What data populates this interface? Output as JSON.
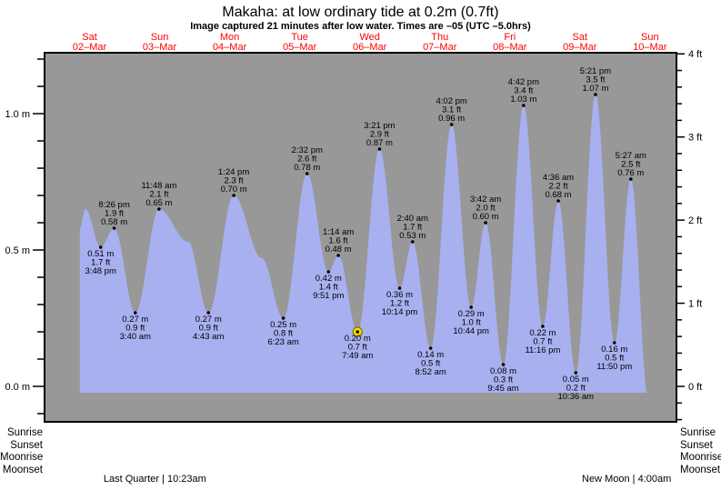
{
  "title": "Makaha: at low  ordinary tide at 0.2m (0.7ft)",
  "subtitle": "Image captured 21 minutes after low water. Times are –05 (UTC –5.0hrs)",
  "colors": {
    "plot_background": "#989898",
    "tide_fill": "#a8b0f0",
    "day_label": "#ff0000",
    "text": "#000000",
    "marker_fill": "#ffdf00",
    "marker_ring": "#7a7a00"
  },
  "chart_data": {
    "type": "area",
    "title": "Makaha: at low  ordinary tide at 0.2m (0.7ft)",
    "days": [
      {
        "name": "Sat",
        "date": "02–Mar"
      },
      {
        "name": "Sun",
        "date": "03–Mar"
      },
      {
        "name": "Mon",
        "date": "04–Mar"
      },
      {
        "name": "Tue",
        "date": "05–Mar"
      },
      {
        "name": "Wed",
        "date": "06–Mar"
      },
      {
        "name": "Thu",
        "date": "07–Mar"
      },
      {
        "name": "Fri",
        "date": "08–Mar"
      },
      {
        "name": "Sat",
        "date": "09–Mar"
      },
      {
        "name": "Sun",
        "date": "10–Mar"
      }
    ],
    "y_left": {
      "unit": "m",
      "ticks": [
        {
          "value": 1.0,
          "label": "1.0 m"
        },
        {
          "value": 0.5,
          "label": "0.5 m"
        },
        {
          "value": 0.0,
          "label": "0.0 m"
        }
      ]
    },
    "y_right": {
      "unit": "ft",
      "ticks": [
        {
          "value": 4,
          "label": "4 ft"
        },
        {
          "value": 3,
          "label": "3 ft"
        },
        {
          "value": 2,
          "label": "2 ft"
        },
        {
          "value": 1,
          "label": "1 ft"
        },
        {
          "value": 0,
          "label": "0 ft"
        }
      ]
    },
    "tide_events": [
      {
        "day": 0,
        "time": "3:48 pm",
        "height_m": 0.51,
        "height_ft": 1.7,
        "type": "low"
      },
      {
        "day": 0,
        "time": "8:26 pm",
        "height_m": 0.58,
        "height_ft": 1.9,
        "type": "high"
      },
      {
        "day": 1,
        "time": "3:40 am",
        "height_m": 0.27,
        "height_ft": 0.9,
        "type": "low"
      },
      {
        "day": 1,
        "time": "11:48 am",
        "height_m": 0.65,
        "height_ft": 2.1,
        "type": "high"
      },
      {
        "day": 2,
        "time": "4:43 am",
        "height_m": 0.27,
        "height_ft": 0.9,
        "type": "low"
      },
      {
        "day": 2,
        "time": "1:24 pm",
        "height_m": 0.7,
        "height_ft": 2.3,
        "type": "high"
      },
      {
        "day": 3,
        "time": "6:23 am",
        "height_m": 0.25,
        "height_ft": 0.8,
        "type": "low"
      },
      {
        "day": 3,
        "time": "2:32 pm",
        "height_m": 0.78,
        "height_ft": 2.6,
        "type": "high"
      },
      {
        "day": 3,
        "time": "9:51 pm",
        "height_m": 0.42,
        "height_ft": 1.4,
        "type": "low"
      },
      {
        "day": 4,
        "time": "1:14 am",
        "height_m": 0.48,
        "height_ft": 1.6,
        "type": "high"
      },
      {
        "day": 4,
        "time": "7:49 am",
        "height_m": 0.2,
        "height_ft": 0.7,
        "type": "low",
        "current": true
      },
      {
        "day": 4,
        "time": "3:21 pm",
        "height_m": 0.87,
        "height_ft": 2.9,
        "type": "high"
      },
      {
        "day": 4,
        "time": "10:14 pm",
        "height_m": 0.36,
        "height_ft": 1.2,
        "type": "low"
      },
      {
        "day": 5,
        "time": "2:40 am",
        "height_m": 0.53,
        "height_ft": 1.7,
        "type": "high"
      },
      {
        "day": 5,
        "time": "8:52 am",
        "height_m": 0.14,
        "height_ft": 0.5,
        "type": "low"
      },
      {
        "day": 5,
        "time": "4:02 pm",
        "height_m": 0.96,
        "height_ft": 3.1,
        "type": "high"
      },
      {
        "day": 5,
        "time": "10:44 pm",
        "height_m": 0.29,
        "height_ft": 1.0,
        "type": "low"
      },
      {
        "day": 6,
        "time": "3:42 am",
        "height_m": 0.6,
        "height_ft": 2.0,
        "type": "high"
      },
      {
        "day": 6,
        "time": "9:45 am",
        "height_m": 0.08,
        "height_ft": 0.3,
        "type": "low"
      },
      {
        "day": 6,
        "time": "4:42 pm",
        "height_m": 1.03,
        "height_ft": 3.4,
        "type": "high"
      },
      {
        "day": 6,
        "time": "11:16 pm",
        "height_m": 0.22,
        "height_ft": 0.7,
        "type": "low"
      },
      {
        "day": 7,
        "time": "4:36 am",
        "height_m": 0.68,
        "height_ft": 2.2,
        "type": "high"
      },
      {
        "day": 7,
        "time": "10:36 am",
        "height_m": 0.05,
        "height_ft": 0.2,
        "type": "low"
      },
      {
        "day": 7,
        "time": "5:21 pm",
        "height_m": 1.07,
        "height_ft": 3.5,
        "type": "high"
      },
      {
        "day": 7,
        "time": "11:50 pm",
        "height_m": 0.16,
        "height_ft": 0.5,
        "type": "low"
      },
      {
        "day": 8,
        "time": "5:27 am",
        "height_m": 0.76,
        "height_ft": 2.5,
        "type": "high"
      }
    ],
    "unlabeled_points": [
      {
        "day": 0,
        "time": "10:36 am",
        "height_m": 0.65
      },
      {
        "day": 1,
        "time": "9:45 pm",
        "height_m": 0.53
      },
      {
        "day": 2,
        "time": "11:00 pm",
        "height_m": 0.47
      }
    ],
    "curve_start": {
      "day": 0,
      "time": "8:40 am",
      "height_m": 0.58
    },
    "curve_end": {
      "day": 8,
      "time": "11:30 am",
      "height_m": -0.05
    }
  },
  "footer": {
    "left_labels": [
      "Sunrise",
      "Sunset",
      "Moonrise",
      "Moonset"
    ],
    "right_labels": [
      "Sunrise",
      "Sunset",
      "Moonrise",
      "Moonset"
    ],
    "moon_events": [
      {
        "label": "Last Quarter | 10:23am",
        "day": 1,
        "time": "10:23 am"
      },
      {
        "label": "New Moon | 4:00am",
        "day": 8,
        "time": "4:00 am"
      }
    ]
  }
}
